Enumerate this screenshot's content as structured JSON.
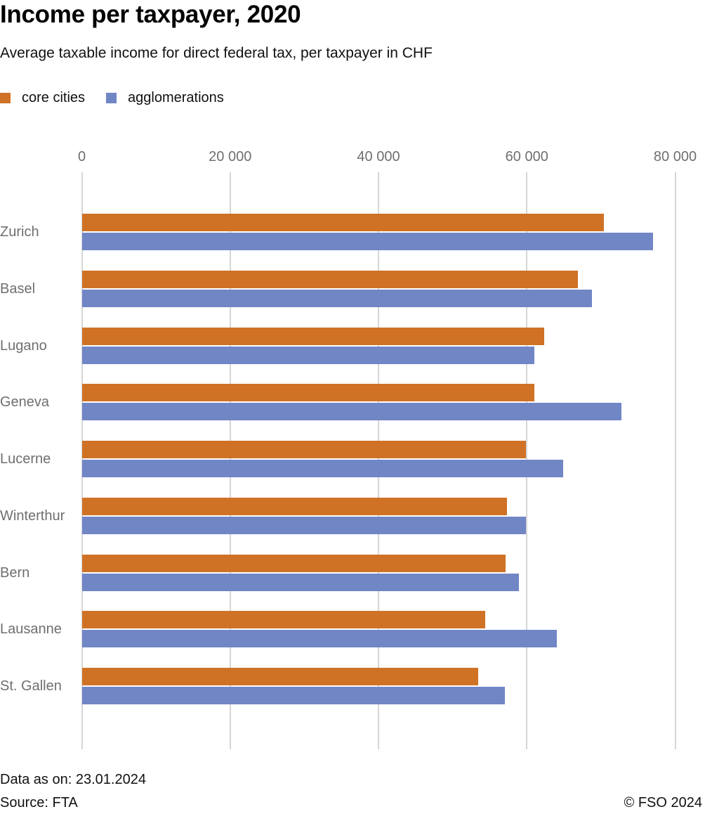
{
  "header": {
    "title": "Income per taxpayer, 2020",
    "subtitle": "Average taxable income for direct federal tax, per taxpayer in CHF"
  },
  "legend": [
    {
      "label": "core cities",
      "color": "#cf7226"
    },
    {
      "label": "agglomerations",
      "color": "#7186c5"
    }
  ],
  "footer": {
    "data_as_on": "Data as on: 23.01.2024",
    "source": "Source: FTA",
    "copyright": "© FSO 2024"
  },
  "chart_data": {
    "type": "bar",
    "orientation": "horizontal",
    "title": "Income per taxpayer, 2020",
    "subtitle": "Average taxable income for direct federal tax, per taxpayer in CHF",
    "xlabel": "",
    "ylabel": "",
    "xlim": [
      0,
      80000
    ],
    "x_ticks": [
      0,
      20000,
      40000,
      60000,
      80000
    ],
    "x_tick_labels": [
      "0",
      "20 000",
      "40 000",
      "60 000",
      "80 000"
    ],
    "grid": "vertical",
    "legend_position": "top-left",
    "categories": [
      "Zurich",
      "Basel",
      "Lugano",
      "Geneva",
      "Lucerne",
      "Winterthur",
      "Bern",
      "Lausanne",
      "St. Gallen"
    ],
    "series": [
      {
        "name": "core cities",
        "color": "#cf7226",
        "values": [
          70400,
          66900,
          62300,
          61000,
          59900,
          57300,
          57100,
          54400,
          53400
        ]
      },
      {
        "name": "agglomerations",
        "color": "#7186c5",
        "values": [
          77000,
          68800,
          61000,
          72800,
          64900,
          59900,
          58900,
          64000,
          57000
        ]
      }
    ]
  }
}
